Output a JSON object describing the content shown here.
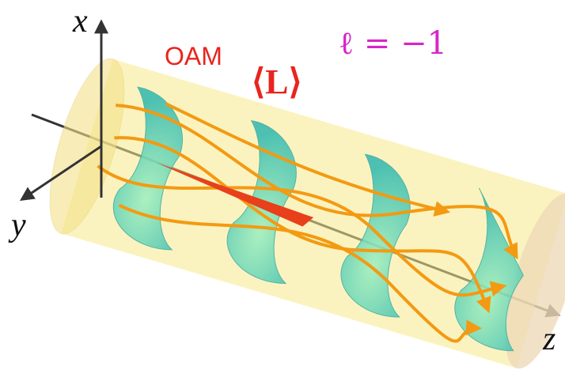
{
  "axes": {
    "x": "x",
    "y": "y",
    "z": "z"
  },
  "labels": {
    "oam": "OAM",
    "angular_momentum": "⟨L⟩",
    "topological_charge": "ℓ = −1"
  }
}
